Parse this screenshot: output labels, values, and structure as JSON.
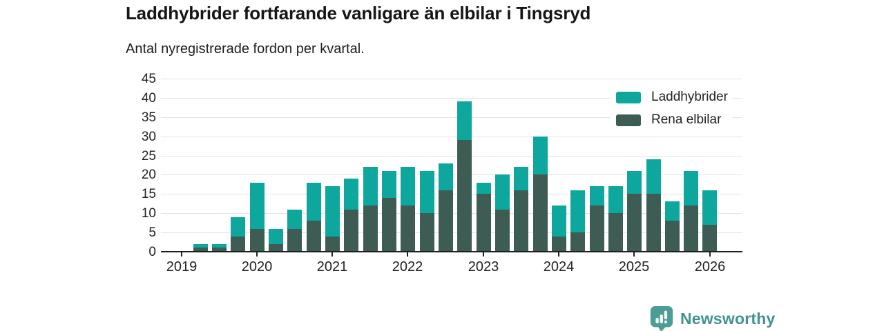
{
  "header": {
    "title": "Laddhybrider fortfarande vanligare än elbilar i Tingsryd",
    "subtitle": "Antal nyregistrerade fordon per kvartal."
  },
  "chart_data": {
    "type": "bar",
    "stacked": true,
    "title": "Laddhybrider fortfarande vanligare än elbilar i Tingsryd",
    "subtitle": "Antal nyregistrerade fordon per kvartal.",
    "categories": [
      "2019 Q1",
      "2019 Q2",
      "2019 Q3",
      "2019 Q4",
      "2020 Q1",
      "2020 Q2",
      "2020 Q3",
      "2020 Q4",
      "2021 Q1",
      "2021 Q2",
      "2021 Q3",
      "2021 Q4",
      "2022 Q1",
      "2022 Q2",
      "2022 Q3",
      "2022 Q4",
      "2023 Q1",
      "2023 Q2",
      "2023 Q3",
      "2023 Q4",
      "2024 Q1",
      "2024 Q2",
      "2024 Q3",
      "2024 Q4",
      "2025 Q1",
      "2025 Q2",
      "2025 Q3",
      "2025 Q4",
      "2026 Q1"
    ],
    "series": [
      {
        "name": "Rena elbilar",
        "color": "#3d5c54",
        "stack_order": "bottom",
        "values": [
          0,
          1,
          1,
          4,
          6,
          2,
          6,
          8,
          4,
          11,
          12,
          14,
          12,
          10,
          16,
          29,
          15,
          11,
          16,
          20,
          4,
          5,
          12,
          10,
          15,
          15,
          8,
          12,
          7
        ]
      },
      {
        "name": "Laddhybrider",
        "color": "#0ea79d",
        "stack_order": "top",
        "values": [
          0,
          1,
          1,
          5,
          12,
          4,
          5,
          10,
          13,
          8,
          10,
          7,
          10,
          11,
          7,
          10,
          3,
          9,
          6,
          10,
          8,
          11,
          5,
          7,
          6,
          9,
          5,
          9,
          9
        ]
      }
    ],
    "totals": [
      0,
      2,
      2,
      9,
      18,
      6,
      11,
      18,
      17,
      19,
      22,
      21,
      22,
      21,
      23,
      39,
      18,
      20,
      22,
      30,
      12,
      16,
      17,
      17,
      21,
      24,
      13,
      21,
      16
    ],
    "xlabel": "",
    "ylabel": "",
    "ylim": [
      0,
      45
    ],
    "yticks": [
      0,
      5,
      10,
      15,
      20,
      25,
      30,
      35,
      40,
      45
    ],
    "x_tick_labels": [
      "2019",
      "2020",
      "2021",
      "2022",
      "2023",
      "2024",
      "2025",
      "2026"
    ],
    "grid": "horizontal",
    "legend_position": "top-right"
  },
  "legend": {
    "items": [
      {
        "label": "Laddhybrider",
        "color": "#0ea79d"
      },
      {
        "label": "Rena elbilar",
        "color": "#3d5c54"
      }
    ]
  },
  "footer": {
    "brand": "Newsworthy",
    "brand_color": "#42938d",
    "icon_color": "#4a9e96"
  }
}
